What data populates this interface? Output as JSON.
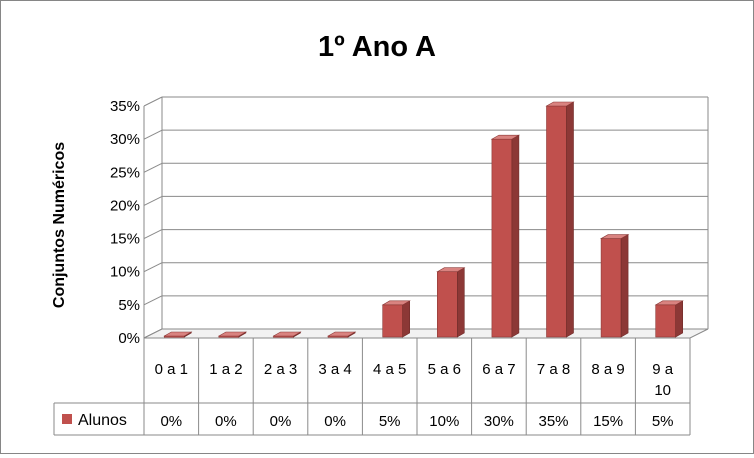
{
  "chart_data": {
    "type": "bar",
    "title": "1º Ano A",
    "xlabel": "",
    "ylabel": "Conjuntos Numéricos",
    "categories": [
      "0 a 1",
      "1 a 2",
      "2 a 3",
      "3 a 4",
      "4 a 5",
      "5 a 6",
      "6 a 7",
      "7 a 8",
      "8 a 9",
      "9 a 10"
    ],
    "series": [
      {
        "name": "Alunos",
        "values": [
          0,
          0,
          0,
          0,
          5,
          10,
          30,
          35,
          15,
          5
        ],
        "color": "#C0504D"
      }
    ],
    "yticks": [
      "0%",
      "5%",
      "10%",
      "15%",
      "20%",
      "25%",
      "30%",
      "35%"
    ],
    "ylim": [
      0,
      35
    ],
    "grid": true,
    "legend": "data-table",
    "data_table": [
      "0%",
      "0%",
      "0%",
      "0%",
      "5%",
      "10%",
      "30%",
      "35%",
      "15%",
      "5%"
    ]
  }
}
